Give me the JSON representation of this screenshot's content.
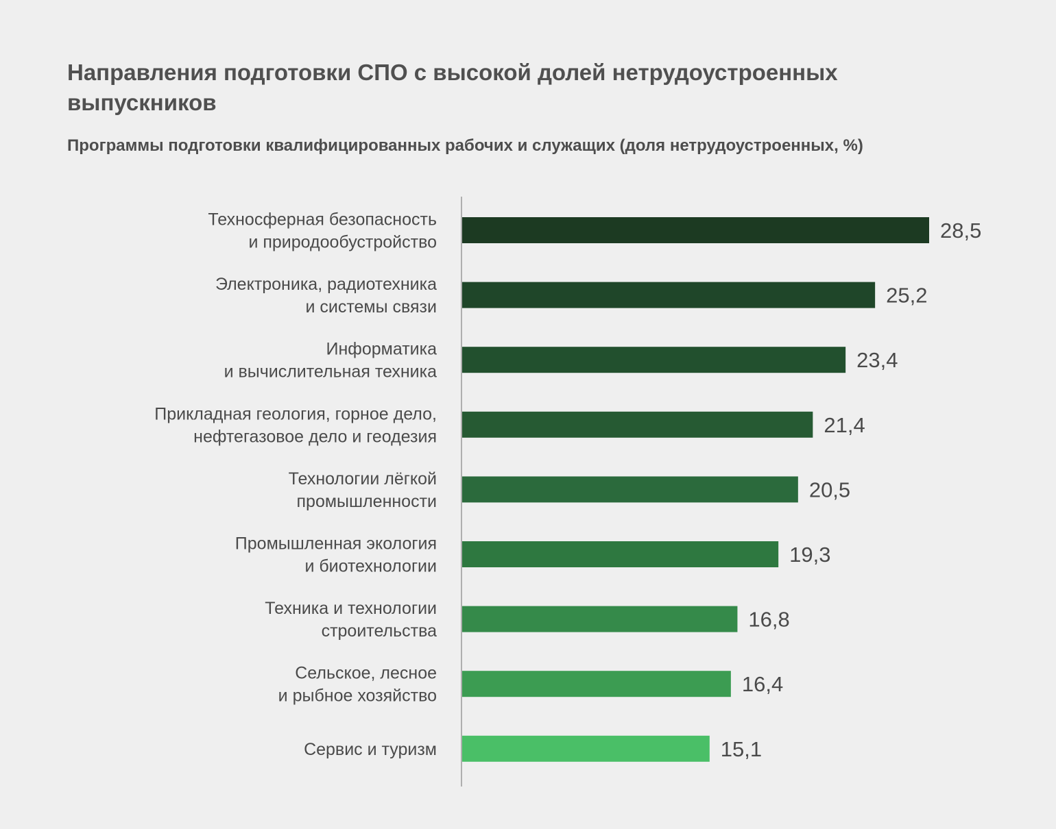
{
  "title": "Направления подготовки СПО с высокой долей нетрудоустроенных выпускников",
  "subtitle": "Программы подготовки квалифицированных рабочих и служащих (доля нетрудоустроенных, %)",
  "chart_data": {
    "type": "bar",
    "orientation": "horizontal",
    "title": "Направления подготовки СПО с высокой долей нетрудоустроенных выпускников",
    "subtitle": "Программы подготовки квалифицированных рабочих и служащих (доля нетрудоустроенных, %)",
    "categories": [
      [
        "Техносферная безопасность",
        "и природообустройство"
      ],
      [
        "Электроника, радиотехника",
        "и системы связи"
      ],
      [
        "Информатика",
        "и вычислительная техника"
      ],
      [
        "Прикладная геология, горное дело,",
        "нефтегазовое дело и геодезия"
      ],
      [
        "Технологии лёгкой",
        "промышленности"
      ],
      [
        "Промышленная экология",
        "и биотехнологии"
      ],
      [
        "Техника и технологии",
        "строительства"
      ],
      [
        "Сельское, лесное",
        "и рыбное хозяйство"
      ],
      [
        "Сервис и туризм"
      ]
    ],
    "values": [
      28.5,
      25.2,
      23.4,
      21.4,
      20.5,
      19.3,
      16.8,
      16.4,
      15.1
    ],
    "value_labels": [
      "28,5",
      "25,2",
      "23,4",
      "21,4",
      "20,5",
      "19,3",
      "16,8",
      "16,4",
      "15,1"
    ],
    "colors": [
      "#1c3a22",
      "#1f4629",
      "#22502e",
      "#265a33",
      "#2b6a3c",
      "#2e7840",
      "#358a4a",
      "#3c9c52",
      "#4abf67"
    ],
    "axis_color": "#9a9a9a",
    "xlim": [
      0,
      28.5
    ],
    "grid": false,
    "legend": "none"
  }
}
